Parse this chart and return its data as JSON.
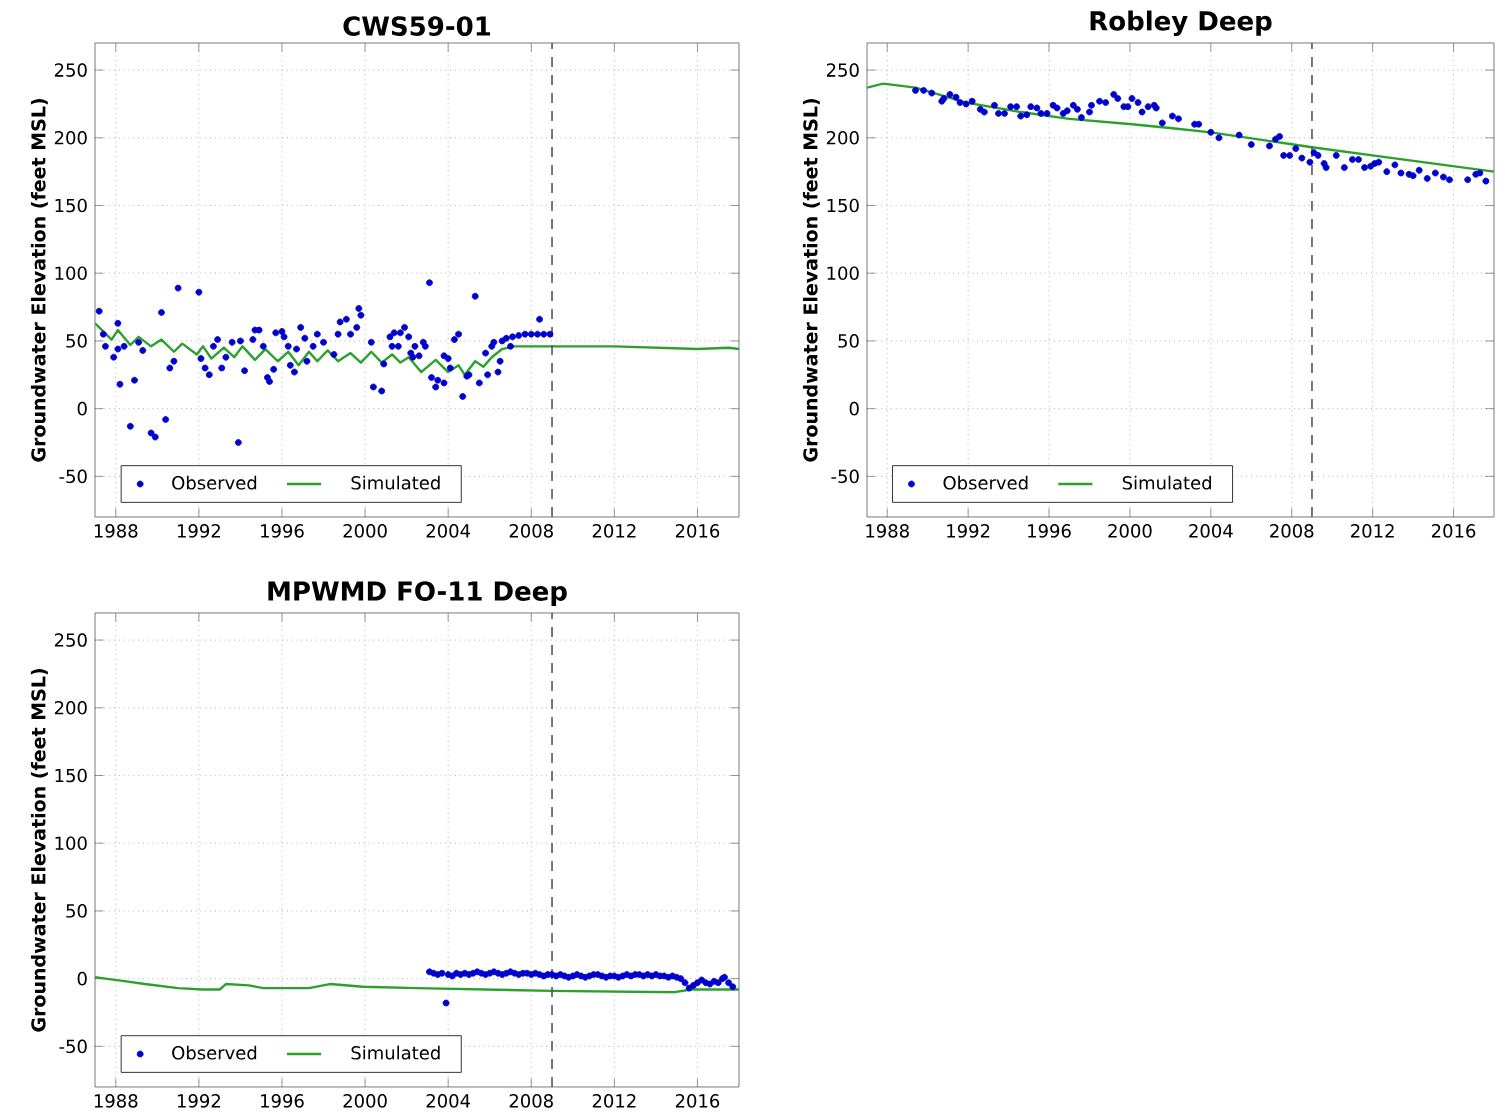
{
  "chart_data": [
    {
      "type": "line",
      "title": "CWS59-01",
      "ylabel": "Groundwater Elevation (feet MSL)",
      "xlim": [
        1987,
        2018
      ],
      "ylim": [
        -80,
        270
      ],
      "xticks": [
        1988,
        1992,
        1996,
        2000,
        2004,
        2008,
        2012,
        2016
      ],
      "yticks": [
        -50,
        0,
        50,
        100,
        150,
        200,
        250
      ],
      "grid": true,
      "legend": "bottom left",
      "ref_lines": [
        {
          "axis": "x",
          "value": 2009,
          "color": "#555555",
          "line_style": "dashed"
        }
      ],
      "series": [
        {
          "name": "Observed",
          "type": "scatter",
          "marker": "circle",
          "color": "#0000cc",
          "x": [
            1987.2,
            1987.4,
            1987.5,
            1987.9,
            1988.1,
            1988.1,
            1988.2,
            1988.4,
            1988.7,
            1988.9,
            1989.1,
            1989.3,
            1989.7,
            1989.9,
            1990.2,
            1990.4,
            1990.6,
            1990.8,
            1991.0,
            1992.0,
            1992.1,
            1992.3,
            1992.5,
            1992.7,
            1992.9,
            1993.1,
            1993.3,
            1993.6,
            1993.9,
            1994.0,
            1994.2,
            1994.6,
            1994.7,
            1994.9,
            1995.1,
            1995.3,
            1995.4,
            1995.6,
            1995.7,
            1996.0,
            1996.1,
            1996.3,
            1996.4,
            1996.6,
            1996.7,
            1996.9,
            1997.1,
            1997.2,
            1997.5,
            1997.7,
            1998.0,
            1998.5,
            1998.7,
            1998.8,
            1999.1,
            1999.3,
            1999.6,
            1999.7,
            1999.8,
            2000.3,
            2000.4,
            2000.8,
            2000.9,
            2001.2,
            2001.3,
            2001.4,
            2001.6,
            2001.7,
            2001.9,
            2002.1,
            2002.2,
            2002.3,
            2002.4,
            2002.6,
            2002.8,
            2002.9,
            2003.1,
            2003.2,
            2003.4,
            2003.5,
            2003.8,
            2003.8,
            2004.0,
            2004.1,
            2004.3,
            2004.5,
            2004.7,
            2004.9,
            2005.0,
            2005.3,
            2005.5,
            2005.8,
            2005.9,
            2006.1,
            2006.2,
            2006.4,
            2006.5,
            2006.6,
            2006.8,
            2007.0,
            2007.1,
            2007.4,
            2007.7,
            2008.0,
            2008.3,
            2008.4,
            2008.6,
            2008.9
          ],
          "values": [
            72,
            55,
            46,
            38,
            63,
            44,
            18,
            46,
            -13,
            21,
            49,
            43,
            -18,
            -21,
            71,
            -8,
            30,
            35,
            89,
            86,
            37,
            30,
            25,
            46,
            51,
            30,
            38,
            49,
            -25,
            50,
            28,
            51,
            58,
            58,
            46,
            23,
            20,
            29,
            56,
            57,
            53,
            46,
            32,
            27,
            44,
            60,
            52,
            35,
            46,
            55,
            49,
            40,
            55,
            64,
            66,
            55,
            60,
            74,
            69,
            49,
            16,
            13,
            33,
            53,
            46,
            56,
            46,
            56,
            60,
            53,
            41,
            38,
            46,
            39,
            49,
            46,
            93,
            23,
            16,
            21,
            19,
            39,
            37,
            30,
            51,
            55,
            9,
            24,
            25,
            83,
            19,
            41,
            25,
            46,
            49,
            27,
            35,
            50,
            52,
            46,
            53,
            54,
            55,
            55,
            55,
            66,
            55,
            55
          ]
        },
        {
          "name": "Simulated",
          "color": "#2ca02c",
          "x": [
            1987.0,
            1987.8,
            1988.1,
            1988.7,
            1989.1,
            1989.7,
            1990.2,
            1990.8,
            1991.2,
            1991.9,
            1992.2,
            1992.6,
            1993.2,
            1993.7,
            1994.1,
            1994.7,
            1995.2,
            1995.8,
            1996.3,
            1996.8,
            1997.3,
            1997.7,
            1998.2,
            1998.7,
            1999.3,
            1999.8,
            2000.3,
            2000.8,
            2001.3,
            2001.7,
            2002.1,
            2002.7,
            2003.4,
            2004.0,
            2004.5,
            2004.8,
            2005.3,
            2005.7,
            2006.1,
            2006.6,
            2007.2,
            2008.0,
            2009.9,
            2012.0,
            2016.0,
            2017.5,
            2018.0
          ],
          "values": [
            63,
            51,
            58,
            47,
            53,
            46,
            51,
            42,
            48,
            40,
            46,
            37,
            45,
            38,
            46,
            36,
            44,
            35,
            42,
            32,
            42,
            35,
            43,
            35,
            41,
            34,
            42,
            34,
            40,
            34,
            38,
            27,
            36,
            27,
            32,
            25,
            35,
            31,
            38,
            44,
            46,
            46,
            46,
            46,
            44,
            45,
            44
          ]
        }
      ]
    },
    {
      "type": "line",
      "title": "Robley Deep",
      "ylabel": "Groundwater Elevation (feet MSL)",
      "xlim": [
        1987,
        2018
      ],
      "ylim": [
        -80,
        270
      ],
      "xticks": [
        1988,
        1992,
        1996,
        2000,
        2004,
        2008,
        2012,
        2016
      ],
      "yticks": [
        -50,
        0,
        50,
        100,
        150,
        200,
        250
      ],
      "grid": true,
      "legend": "bottom left",
      "ref_lines": [
        {
          "axis": "x",
          "value": 2009,
          "color": "#555555",
          "line_style": "dashed"
        }
      ],
      "series": [
        {
          "name": "Observed",
          "type": "scatter",
          "marker": "circle",
          "color": "#0000cc",
          "x": [
            1989.4,
            1989.8,
            1990.2,
            1990.7,
            1990.8,
            1991.1,
            1991.4,
            1991.6,
            1991.9,
            1992.2,
            1992.6,
            1992.8,
            1993.3,
            1993.5,
            1993.8,
            1994.1,
            1994.4,
            1994.6,
            1994.9,
            1995.1,
            1995.4,
            1995.6,
            1995.9,
            1996.2,
            1996.4,
            1996.7,
            1996.9,
            1997.2,
            1997.4,
            1997.6,
            1998.0,
            1998.1,
            1998.5,
            1998.8,
            1999.2,
            1999.4,
            1999.7,
            1999.9,
            2000.1,
            2000.4,
            2000.6,
            2000.9,
            2001.2,
            2001.3,
            2001.6,
            2002.1,
            2002.4,
            2003.2,
            2003.4,
            2004.0,
            2004.4,
            2005.4,
            2006.0,
            2006.9,
            2007.2,
            2007.4,
            2007.6,
            2007.9,
            2008.2,
            2008.5,
            2008.9,
            2009.1,
            2009.3,
            2009.6,
            2009.7,
            2010.2,
            2010.6,
            2011.0,
            2011.3,
            2011.6,
            2011.9,
            2012.1,
            2012.3,
            2012.7,
            2013.1,
            2013.4,
            2013.8,
            2014.0,
            2014.3,
            2014.7,
            2015.1,
            2015.5,
            2015.8,
            2016.7,
            2017.1,
            2017.3,
            2017.6
          ],
          "values": [
            235,
            235,
            233,
            227,
            229,
            232,
            230,
            226,
            225,
            227,
            221,
            219,
            224,
            218,
            218,
            223,
            223,
            216,
            217,
            223,
            222,
            218,
            218,
            224,
            222,
            218,
            220,
            224,
            221,
            215,
            219,
            224,
            227,
            226,
            232,
            229,
            223,
            223,
            229,
            226,
            219,
            223,
            224,
            222,
            211,
            216,
            214,
            210,
            210,
            204,
            200,
            202,
            195,
            194,
            199,
            201,
            187,
            187,
            192,
            185,
            182,
            189,
            187,
            181,
            178,
            187,
            178,
            184,
            184,
            178,
            179,
            181,
            182,
            175,
            180,
            174,
            173,
            172,
            176,
            170,
            174,
            171,
            169,
            169,
            173,
            174,
            168
          ]
        },
        {
          "name": "Simulated",
          "color": "#2ca02c",
          "x": [
            1987.0,
            1987.8,
            1989.4,
            1991.9,
            1994.6,
            1997.0,
            2000.1,
            2002.1,
            2004.0,
            2009.0,
            2013.0,
            2018.0
          ],
          "values": [
            237,
            240,
            237,
            226,
            219,
            214,
            210,
            207,
            204,
            193,
            185,
            175
          ]
        }
      ]
    },
    {
      "type": "line",
      "title": "MPWMD FO-11 Deep",
      "ylabel": "Groundwater Elevation (feet MSL)",
      "xlim": [
        1987,
        2018
      ],
      "ylim": [
        -80,
        270
      ],
      "xticks": [
        1988,
        1992,
        1996,
        2000,
        2004,
        2008,
        2012,
        2016
      ],
      "yticks": [
        -50,
        0,
        50,
        100,
        150,
        200,
        250
      ],
      "grid": true,
      "legend": "bottom left",
      "ref_lines": [
        {
          "axis": "x",
          "value": 2009,
          "color": "#555555",
          "line_style": "dashed"
        }
      ],
      "series": [
        {
          "name": "Observed",
          "type": "scatter",
          "marker": "circle",
          "color": "#0000cc",
          "x": [
            2003.1,
            2003.3,
            2003.5,
            2003.7,
            2003.9,
            2004.0,
            2004.2,
            2004.4,
            2004.6,
            2004.8,
            2005.0,
            2005.2,
            2005.4,
            2005.6,
            2005.8,
            2006.0,
            2006.2,
            2006.4,
            2006.6,
            2006.8,
            2007.0,
            2007.2,
            2007.4,
            2007.6,
            2007.8,
            2008.0,
            2008.2,
            2008.4,
            2008.6,
            2008.8,
            2009.0,
            2009.2,
            2009.4,
            2009.6,
            2009.8,
            2010.0,
            2010.2,
            2010.4,
            2010.6,
            2010.8,
            2011.0,
            2011.2,
            2011.4,
            2011.6,
            2011.8,
            2012.0,
            2012.2,
            2012.4,
            2012.6,
            2012.8,
            2013.0,
            2013.2,
            2013.4,
            2013.6,
            2013.8,
            2014.0,
            2014.2,
            2014.4,
            2014.6,
            2014.8,
            2015.0,
            2015.2,
            2015.4,
            2015.6,
            2015.8,
            2016.0,
            2016.2,
            2016.4,
            2016.6,
            2016.8,
            2017.0,
            2017.2,
            2017.3,
            2017.5,
            2017.7
          ],
          "values": [
            5,
            4,
            3,
            4,
            -18,
            3,
            2,
            4,
            3,
            4,
            3,
            4,
            5,
            4,
            3,
            4,
            5,
            4,
            3,
            4,
            5,
            4,
            3,
            4,
            4,
            3,
            4,
            3,
            2,
            3,
            3,
            2,
            3,
            2,
            1,
            2,
            3,
            2,
            1,
            2,
            3,
            3,
            2,
            1,
            2,
            2,
            1,
            2,
            3,
            2,
            3,
            3,
            2,
            3,
            2,
            3,
            2,
            2,
            1,
            2,
            1,
            0,
            -3,
            -7,
            -5,
            -3,
            -1,
            -3,
            -4,
            -2,
            -3,
            0,
            1,
            -3,
            -6
          ]
        },
        {
          "name": "Simulated",
          "color": "#2ca02c",
          "x": [
            1987.0,
            1987.5,
            1988.5,
            1989.4,
            1991.0,
            1992.2,
            1993.0,
            1993.3,
            1994.4,
            1995.1,
            1997.3,
            1998.3,
            1999.9,
            2002.5,
            2009.0,
            2014.9,
            2015.7,
            2018.0
          ],
          "values": [
            1,
            0,
            -2,
            -4,
            -7,
            -8,
            -8,
            -4,
            -5,
            -7,
            -7,
            -4,
            -6,
            -7,
            -9,
            -10,
            -8,
            -8
          ]
        }
      ]
    }
  ]
}
